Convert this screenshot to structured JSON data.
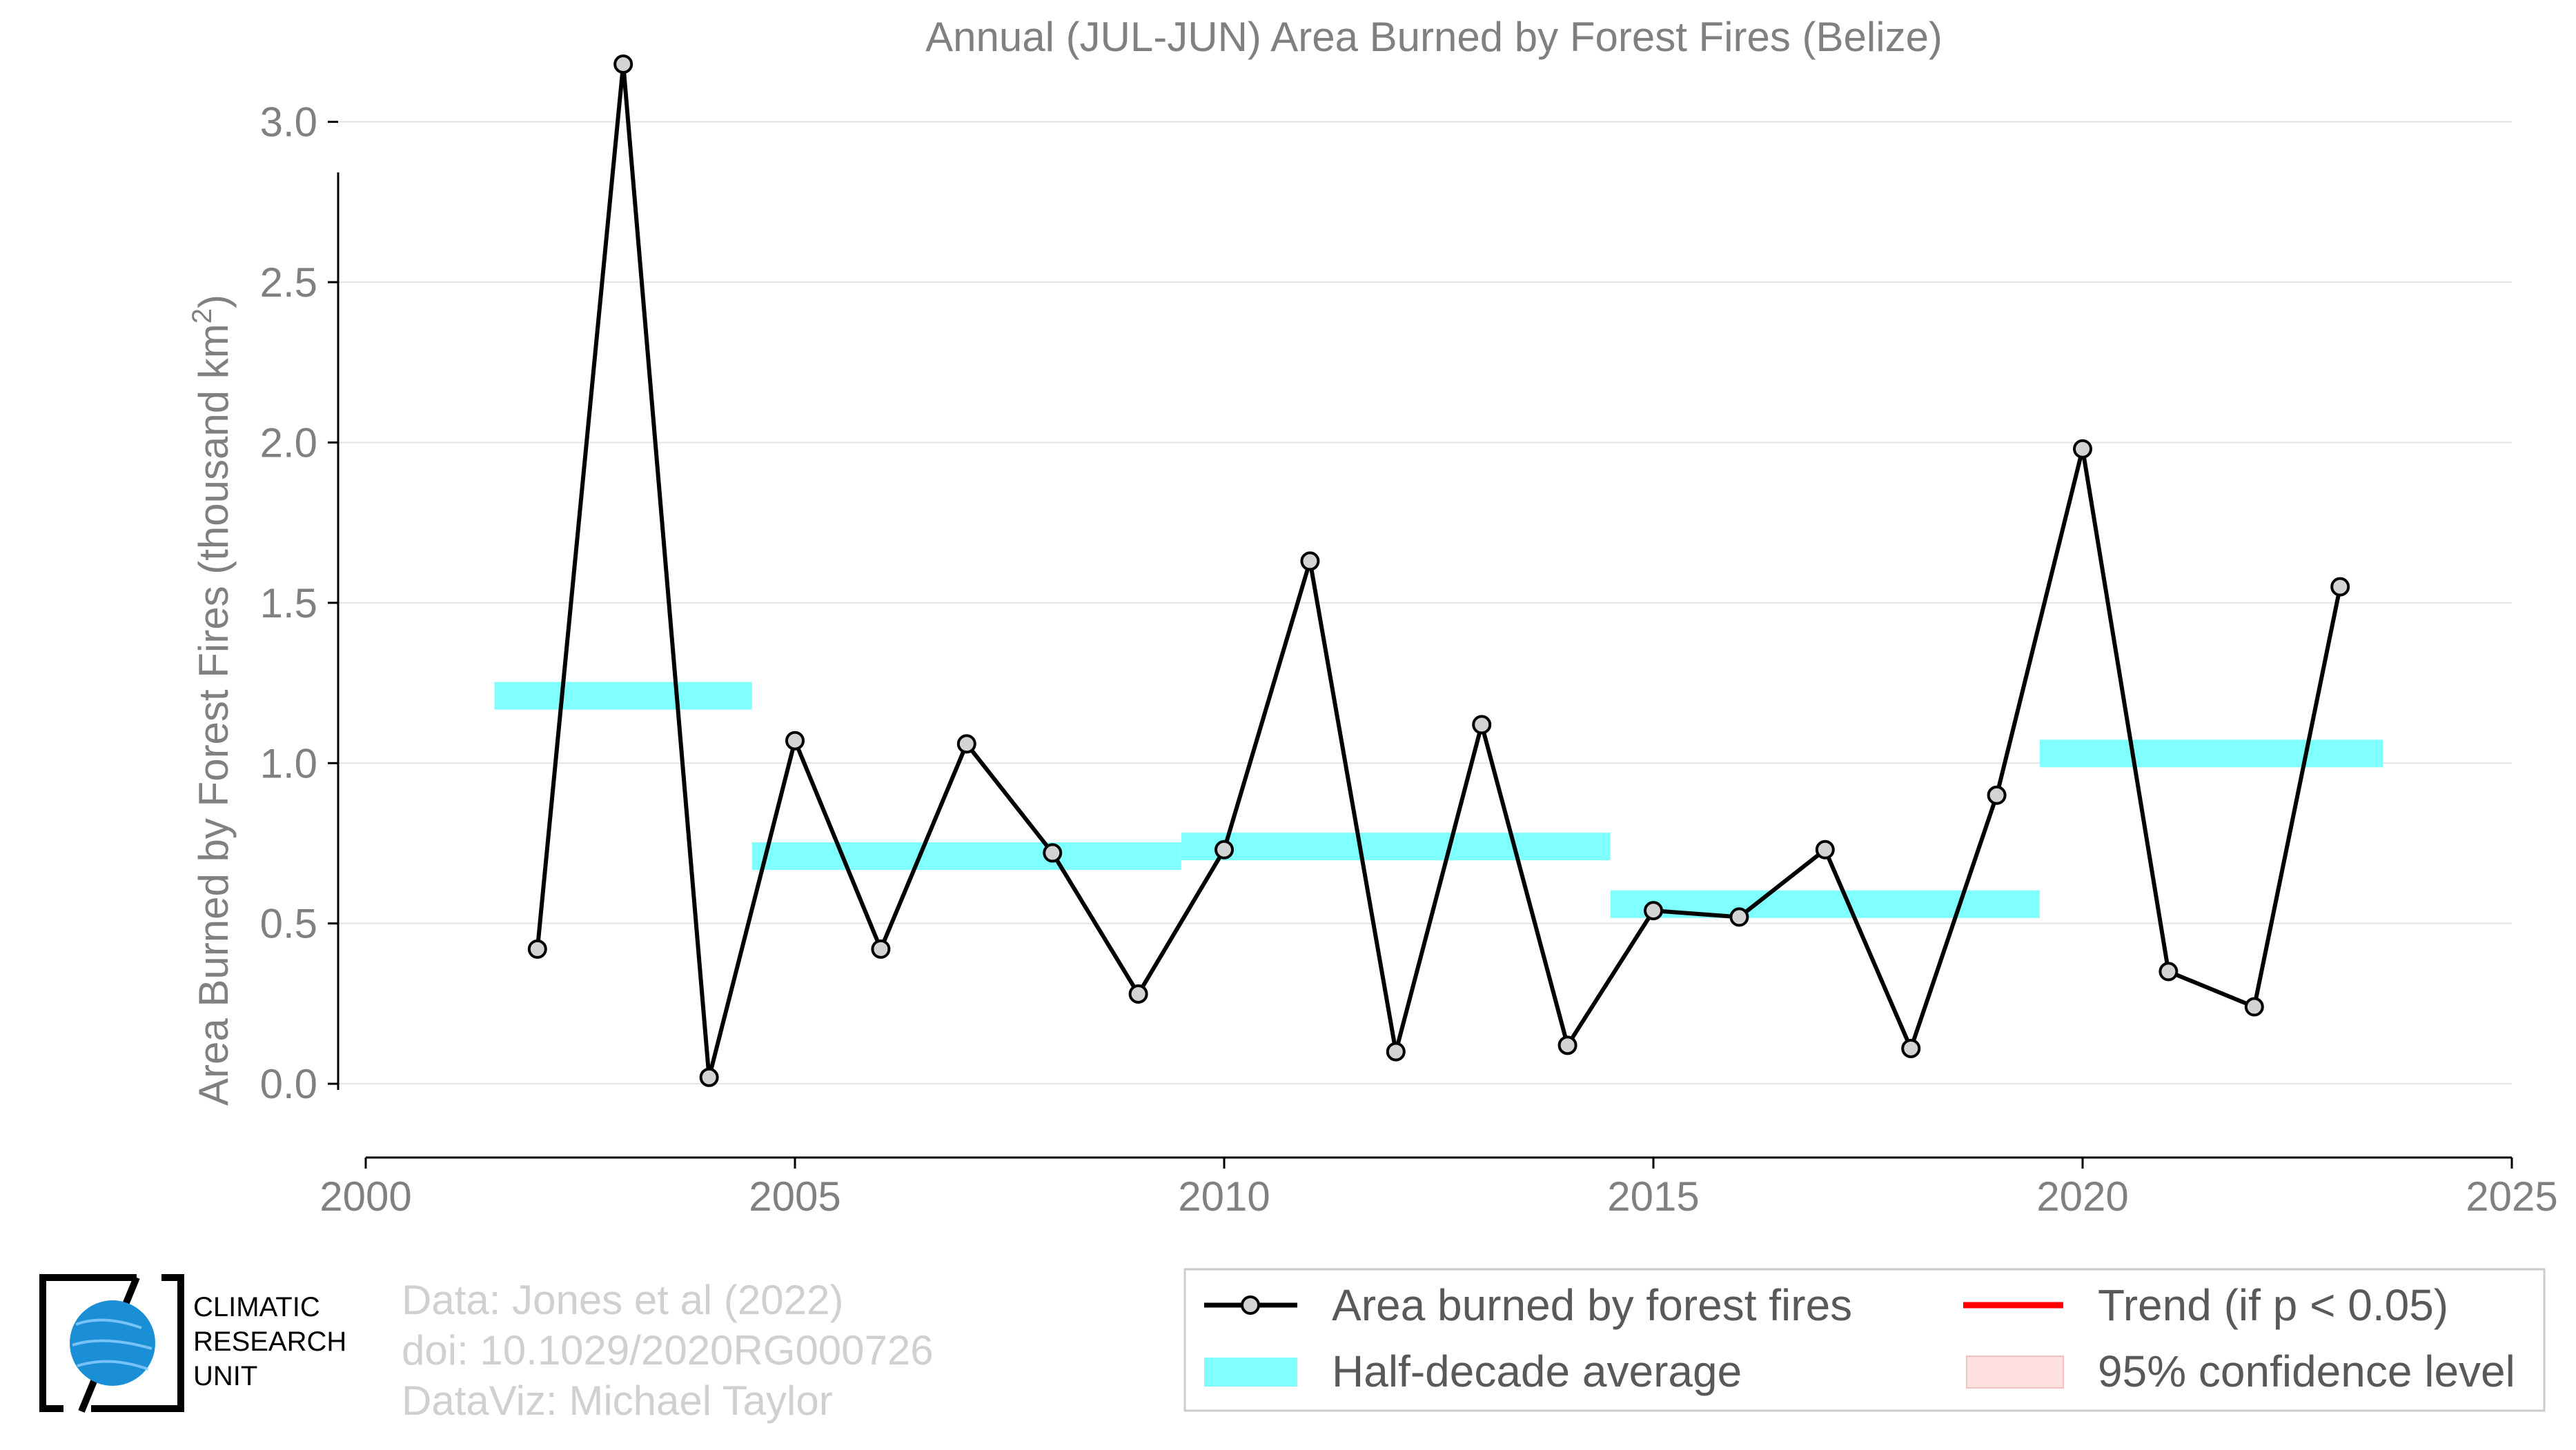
{
  "chart_data": {
    "type": "line",
    "title": "Annual (JUL-JUN) Area Burned by Forest Fires (Belize)",
    "ylabel_main": "Area Burned by Forest Fires (thousand km",
    "ylabel_sup": "2",
    "ylabel_close": ")",
    "xlim": [
      2000,
      2025
    ],
    "ylim": [
      -0.23,
      3.38
    ],
    "xticks": [
      2000,
      2005,
      2010,
      2015,
      2020,
      2025
    ],
    "yticks": [
      0.0,
      0.5,
      1.0,
      1.5,
      2.0,
      2.5,
      3.0
    ],
    "ytick_labels": [
      "0.0",
      "0.5",
      "1.0",
      "1.5",
      "2.0",
      "2.5",
      "3.0"
    ],
    "grid": true,
    "series": [
      {
        "name": "Area burned by forest fires",
        "x": [
          2002,
          2003,
          2004,
          2005,
          2006,
          2007,
          2008,
          2009,
          2010,
          2011,
          2012,
          2013,
          2014,
          2015,
          2016,
          2017,
          2018,
          2019,
          2020,
          2021,
          2022,
          2023
        ],
        "y": [
          0.42,
          3.18,
          0.02,
          1.07,
          0.42,
          1.06,
          0.72,
          0.28,
          0.73,
          1.63,
          0.1,
          1.12,
          0.12,
          0.54,
          0.52,
          0.73,
          0.11,
          0.9,
          1.98,
          0.35,
          0.24,
          1.55
        ],
        "color": "#000000",
        "marker_fill": "#d3d3d3"
      }
    ],
    "half_decade_average": [
      {
        "x0": 2001.5,
        "x1": 2004.5,
        "y": 1.21
      },
      {
        "x0": 2004.5,
        "x1": 2009.5,
        "y": 0.71
      },
      {
        "x0": 2009.5,
        "x1": 2014.5,
        "y": 0.74
      },
      {
        "x0": 2014.5,
        "x1": 2019.5,
        "y": 0.56
      },
      {
        "x0": 2019.5,
        "x1": 2023.5,
        "y": 1.03
      }
    ],
    "half_decade_color": "#80ffff",
    "trend_color": "#ff0000",
    "confidence_color": "#ffe0e0",
    "legend": {
      "placement": "bottom-right",
      "entries": [
        {
          "label": "Area burned by forest fires",
          "kind": "line-marker"
        },
        {
          "label": "Trend (if p < 0.05)",
          "kind": "trend-line"
        },
        {
          "label": "Half-decade average",
          "kind": "band"
        },
        {
          "label": "95% confidence level",
          "kind": "confidence-patch"
        }
      ]
    }
  },
  "credits": {
    "line1": "Data: Jones et al (2022)",
    "line2": "doi: 10.1029/2020RG000726",
    "line3": "DataViz: Michael Taylor"
  },
  "logo": {
    "line1": "CLIMATIC",
    "line2": "RESEARCH",
    "line3": "UNIT",
    "globe_color": "#1a8fd6"
  }
}
